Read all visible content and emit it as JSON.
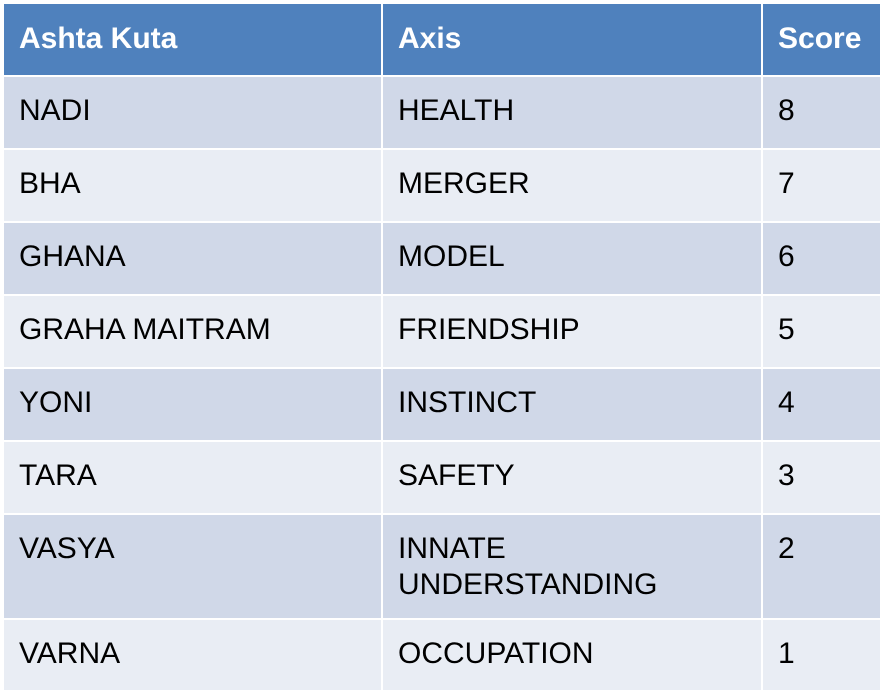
{
  "table": {
    "headers": [
      "Ashta Kuta",
      "Axis",
      "Score"
    ],
    "rows": [
      {
        "kuta": "NADI",
        "axis": "HEALTH",
        "score": "8"
      },
      {
        "kuta": "BHA",
        "axis": "MERGER",
        "score": "7"
      },
      {
        "kuta": "GHANA",
        "axis": "MODEL",
        "score": "6"
      },
      {
        "kuta": "GRAHA MAITRAM",
        "axis": "FRIENDSHIP",
        "score": "5"
      },
      {
        "kuta": "YONI",
        "axis": "INSTINCT",
        "score": "4"
      },
      {
        "kuta": "TARA",
        "axis": "SAFETY",
        "score": "3"
      },
      {
        "kuta": "VASYA",
        "axis": "INNATE UNDERSTANDING",
        "axis_lines": [
          "INNATE",
          "UNDERSTANDING"
        ],
        "score": "2"
      },
      {
        "kuta": "VARNA",
        "axis": "OCCUPATION",
        "score": "1"
      }
    ],
    "colors": {
      "header_bg": "#4f81bd",
      "header_text": "#ffffff",
      "row_odd_bg": "#d0d8e8",
      "row_even_bg": "#e9edf4",
      "text": "#000000"
    }
  }
}
